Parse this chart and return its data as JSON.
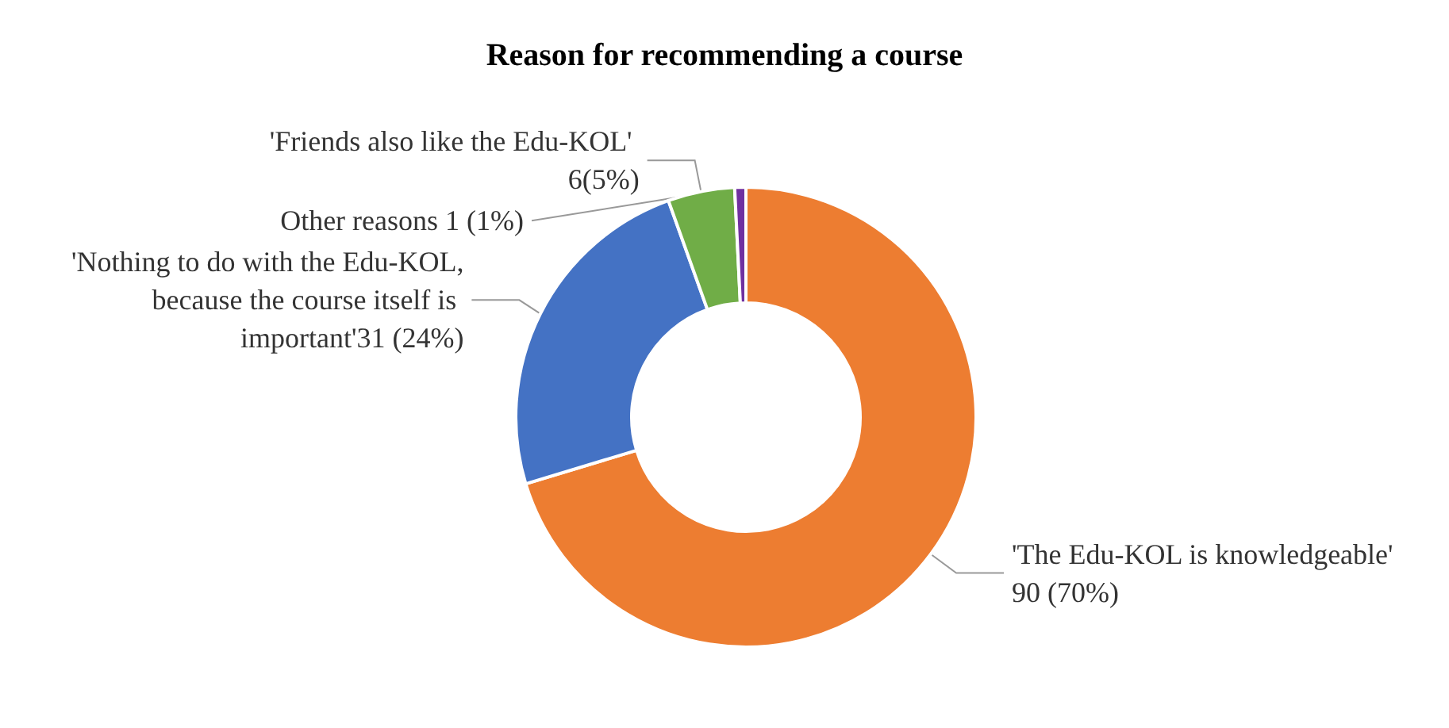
{
  "chart_data": {
    "type": "donut",
    "title": "Reason for recommending a course",
    "categories": [
      "'The Edu-KOL is knowledgeable'",
      "'Nothing to do with the Edu-KOL, because the course itself is important'",
      "'Friends also like the Edu-KOL'",
      "Other reasons"
    ],
    "values": [
      90,
      31,
      6,
      1
    ],
    "colors": [
      "#ed7d31",
      "#4472c4",
      "#70ad47",
      "#7030a0"
    ],
    "value_labels": [
      " 90 (70%)",
      "31 (24%)",
      " 6(5%)",
      " 1 (1%)"
    ],
    "legend": false
  }
}
